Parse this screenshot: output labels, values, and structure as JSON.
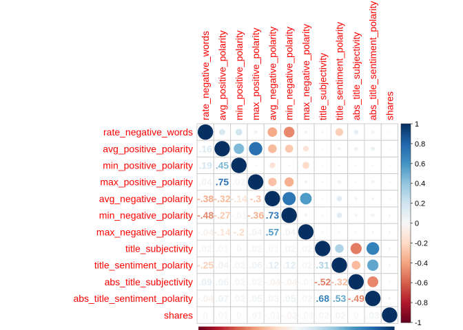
{
  "chart_data": {
    "type": "heatmap",
    "style": "corrplot-mixed",
    "variables": [
      "rate_negative_words",
      "avg_positive_polarity",
      "min_positive_polarity",
      "max_positive_polarity",
      "avg_negative_polarity",
      "min_negative_polarity",
      "max_negative_polarity",
      "title_subjectivity",
      "title_sentiment_polarity",
      "abs_title_subjectivity",
      "abs_title_sentiment_polarity",
      "shares"
    ],
    "matrix": [
      [
        1,
        0.16,
        0.19,
        0.04,
        -0.38,
        -0.48,
        -0.04,
        0.02,
        -0.25,
        0.09,
        -0.04,
        0.0
      ],
      [
        0.16,
        1,
        0.45,
        0.75,
        -0.32,
        -0.27,
        -0.14,
        0.01,
        0.04,
        0.06,
        0.07,
        0.01
      ],
      [
        0.19,
        0.45,
        1,
        0.02,
        -0.14,
        -0.01,
        -0.2,
        0.0,
        0.02,
        0.02,
        0.02,
        0.0
      ],
      [
        0.04,
        0.75,
        0.02,
        1,
        -0.3,
        -0.36,
        0.04,
        0.02,
        0.06,
        0.02,
        0.05,
        0.01
      ],
      [
        -0.38,
        -0.32,
        -0.14,
        -0.3,
        1,
        0.73,
        0.57,
        0.01,
        0.12,
        -0.04,
        0.03,
        -0.01
      ],
      [
        -0.48,
        -0.27,
        -0.01,
        -0.36,
        0.73,
        1,
        0.04,
        0.02,
        0.12,
        -0.04,
        0.05,
        -0.02
      ],
      [
        -0.04,
        -0.14,
        -0.2,
        0.04,
        0.57,
        0.04,
        1,
        0.02,
        0.02,
        -0.01,
        0.02,
        -0.01
      ],
      [
        0.02,
        0.01,
        0.0,
        0.02,
        0.01,
        0.02,
        0.02,
        1,
        0.31,
        -0.52,
        0.68,
        0.02
      ],
      [
        -0.25,
        0.04,
        0.02,
        0.06,
        0.12,
        0.12,
        0.02,
        0.31,
        1,
        -0.32,
        0.53,
        0.02
      ],
      [
        0.09,
        0.06,
        0.02,
        0.02,
        -0.04,
        -0.04,
        -0.01,
        -0.52,
        -0.32,
        1,
        -0.49,
        0.0
      ],
      [
        -0.04,
        0.07,
        0.02,
        0.05,
        0.03,
        0.05,
        0.02,
        0.68,
        0.53,
        -0.49,
        1,
        0.03
      ],
      [
        0.0,
        0.01,
        0.0,
        0.01,
        -0.01,
        -0.02,
        -0.01,
        0.02,
        0.02,
        0.0,
        0.03,
        1
      ]
    ],
    "colorbar": {
      "range": [
        -1,
        1
      ],
      "ticks": [
        "1",
        "0.8",
        "0.6",
        "0.4",
        "0.2",
        "0",
        "-0.2",
        "-0.4",
        "-0.6",
        "-0.8",
        "-1"
      ]
    },
    "colors": {
      "positive": "#053061",
      "negative": "#67001f",
      "neutral": "#f7f7f7",
      "label": "#ff0000",
      "grid": "#cccccc"
    }
  }
}
